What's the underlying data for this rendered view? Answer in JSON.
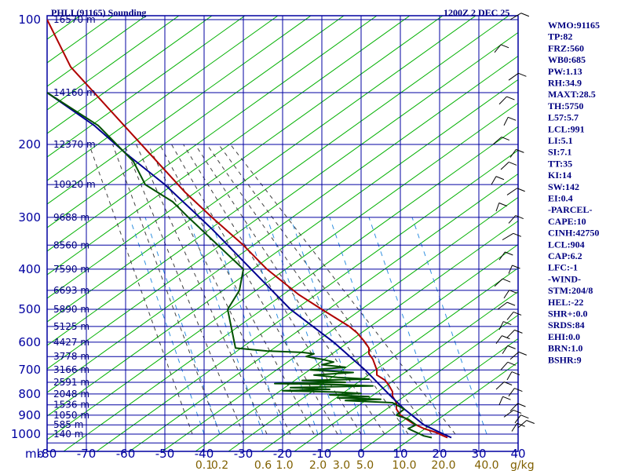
{
  "chart_data": {
    "type": "line",
    "title_left": "PHLI (91165) Sounding",
    "title_right": "1200Z  2 DEC 25",
    "pressure_levels": [
      100,
      200,
      300,
      400,
      500,
      600,
      700,
      800,
      900,
      1000
    ],
    "pressure_unit_label": "mb",
    "temperature_ticks": [
      -80,
      -70,
      -60,
      -50,
      -40,
      -30,
      -20,
      -10,
      0,
      10,
      20,
      30,
      40
    ],
    "temperature_range": [
      -80,
      40
    ],
    "pressure_range": [
      100,
      1050
    ],
    "mixing_ratio_ticks": [
      "0.1",
      "0.2",
      "0.6",
      "1.0",
      "2.0",
      "3.0",
      "5.0",
      "10.0",
      "20.0",
      "40.0"
    ],
    "mixing_ratio_tick_temps": [
      -40,
      -36,
      -25,
      -19.5,
      -11,
      -5,
      1,
      11,
      21,
      32
    ],
    "mixing_ratio_unit": "g/kg",
    "height_labels": [
      {
        "p": 100,
        "label": "16570 m"
      },
      {
        "p": 150,
        "label": "14160 m"
      },
      {
        "p": 200,
        "label": "12370 m"
      },
      {
        "p": 250,
        "label": "10920 m"
      },
      {
        "p": 300,
        "label": "9688 m"
      },
      {
        "p": 350,
        "label": "8560 m"
      },
      {
        "p": 400,
        "label": "7590 m"
      },
      {
        "p": 450,
        "label": "6693 m"
      },
      {
        "p": 500,
        "label": "5890 m"
      },
      {
        "p": 550,
        "label": "5125 m"
      },
      {
        "p": 600,
        "label": "4427 m"
      },
      {
        "p": 650,
        "label": "3778 m"
      },
      {
        "p": 700,
        "label": "3166 m"
      },
      {
        "p": 750,
        "label": "2591 m"
      },
      {
        "p": 800,
        "label": "2048 m"
      },
      {
        "p": 850,
        "label": "1536 m"
      },
      {
        "p": 900,
        "label": "1050 m"
      },
      {
        "p": 950,
        "label": "585 m"
      },
      {
        "p": 1000,
        "label": "140 m"
      }
    ],
    "series": [
      {
        "color": "#b00000",
        "points": [
          [
            -80,
            100
          ],
          [
            -74,
            130
          ],
          [
            -56,
            200
          ],
          [
            -45,
            260
          ],
          [
            -38,
            300
          ],
          [
            -30,
            350
          ],
          [
            -24,
            400
          ],
          [
            -16,
            460
          ],
          [
            -10,
            500
          ],
          [
            -3,
            550
          ],
          [
            -1,
            570
          ],
          [
            1,
            600
          ],
          [
            2,
            620
          ],
          [
            2,
            640
          ],
          [
            3,
            660
          ],
          [
            4,
            700
          ],
          [
            4,
            720
          ],
          [
            6,
            740
          ],
          [
            7,
            760
          ],
          [
            8,
            790
          ],
          [
            8,
            810
          ],
          [
            9,
            840
          ],
          [
            9,
            870
          ],
          [
            10,
            900
          ],
          [
            13,
            940
          ],
          [
            16,
            970
          ],
          [
            19,
            990
          ],
          [
            21,
            1010
          ],
          [
            22,
            1020
          ]
        ]
      },
      {
        "color": "#000090",
        "points": [
          [
            -80,
            150
          ],
          [
            -68,
            180
          ],
          [
            -60,
            210
          ],
          [
            -50,
            250
          ],
          [
            -38,
            320
          ],
          [
            -28,
            400
          ],
          [
            -18,
            500
          ],
          [
            -7,
            600
          ],
          [
            1,
            700
          ],
          [
            7,
            800
          ],
          [
            11,
            870
          ],
          [
            16,
            950
          ],
          [
            20,
            990
          ],
          [
            23,
            1020
          ]
        ]
      },
      {
        "color": "#005000",
        "points": [
          [
            -80,
            150
          ],
          [
            -67,
            180
          ],
          [
            -58,
            220
          ],
          [
            -55,
            250
          ],
          [
            -48,
            275
          ],
          [
            -44,
            300
          ],
          [
            -30,
            400
          ],
          [
            -31,
            450
          ],
          [
            -34,
            500
          ],
          [
            -32,
            620
          ],
          [
            -24,
            630
          ],
          [
            -15,
            635
          ],
          [
            -12,
            640
          ],
          [
            -14,
            650
          ],
          [
            -10,
            660
          ],
          [
            -7,
            670
          ],
          [
            -10,
            680
          ],
          [
            -4,
            690
          ],
          [
            -13,
            700
          ],
          [
            -2,
            710
          ],
          [
            -12,
            720
          ],
          [
            -6,
            730
          ],
          [
            2,
            737
          ],
          [
            -15,
            742
          ],
          [
            -4,
            750
          ],
          [
            -22,
            755
          ],
          [
            -5,
            760
          ],
          [
            3,
            765
          ],
          [
            -18,
            772
          ],
          [
            -8,
            780
          ],
          [
            -20,
            786
          ],
          [
            -6,
            792
          ],
          [
            0,
            798
          ],
          [
            -8,
            804
          ],
          [
            2,
            812
          ],
          [
            -6,
            818
          ],
          [
            5,
            824
          ],
          [
            -4,
            830
          ],
          [
            8,
            840
          ],
          [
            11,
            870
          ],
          [
            9,
            900
          ],
          [
            12,
            920
          ],
          [
            14,
            950
          ],
          [
            12,
            970
          ],
          [
            14,
            990
          ],
          [
            15,
            1000
          ],
          [
            16,
            1010
          ],
          [
            18,
            1020
          ]
        ]
      }
    ],
    "wind_barbs_present": true,
    "indices": [
      "WMO:91165",
      "TP:82",
      "FRZ:560",
      "WB0:685",
      "PW:1.13",
      "RH:34.9",
      "MAXT:28.5",
      "TH:5750",
      "L57:5.7",
      "LCL:991",
      "LI:5.1",
      "SI:7.1",
      "TT:35",
      "KI:14",
      "SW:142",
      "EI:0.4",
      "-PARCEL-",
      "CAPE:10",
      "CINH:42750",
      "LCL:904",
      "CAP:6.2",
      "LFC:-1",
      "-WIND-",
      "STM:204/8",
      "HEL:-22",
      "SHR+:0.0",
      "SRDS:84",
      "EHI:0.0",
      "BRN:1.0",
      "BSHR:9"
    ],
    "colors": {
      "background": "#ffffff",
      "grid": "#0000a0",
      "dry_adiabat": "#00b000",
      "moist_adiabat": "#404040",
      "mixing_ratio": "#3090e0",
      "temperature": "#b00000",
      "parcel": "#000090",
      "dewpoint": "#005000",
      "text": "#000080"
    }
  }
}
